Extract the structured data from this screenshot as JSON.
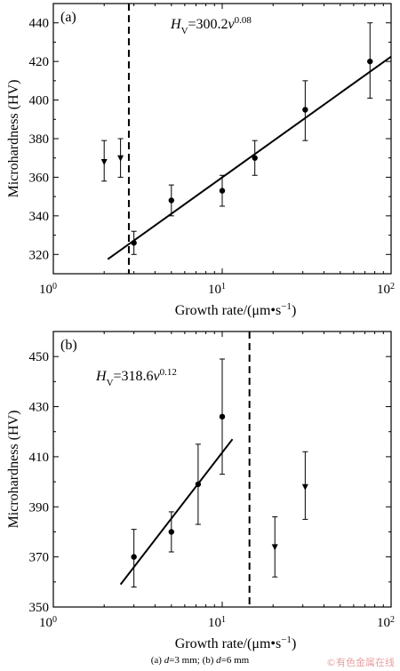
{
  "chart_data": [
    {
      "type": "scatter",
      "panel_label": "(a)",
      "equation": {
        "lhs": "H",
        "lhs_sub": "V",
        "rhs": "=300.2",
        "var": "v",
        "exp": "0.08"
      },
      "xlabel": "Growth rate/(μm•s",
      "xlabel_sup": "−1",
      "xlabel_end": ")",
      "ylabel": "Microhardness (HV)",
      "x_scale": "log",
      "xlim": [
        1,
        100
      ],
      "ylim": [
        310,
        450
      ],
      "x_ticks": [
        {
          "value": 1,
          "base": "10",
          "exp": "0"
        },
        {
          "value": 10,
          "base": "10",
          "exp": "1"
        },
        {
          "value": 100,
          "base": "10",
          "exp": "2"
        }
      ],
      "y_ticks": [
        320,
        340,
        360,
        380,
        400,
        420,
        440
      ],
      "dashed_line_x": 2.8,
      "fit_line": {
        "x": [
          2.1,
          100
        ],
        "y": [
          317.5,
          422.5
        ]
      },
      "series": [
        {
          "marker": "circle",
          "points": [
            {
              "x": 3.0,
              "y": 326,
              "err_low": 320,
              "err_high": 332
            },
            {
              "x": 5.0,
              "y": 348,
              "err_low": 340,
              "err_high": 356
            },
            {
              "x": 10.0,
              "y": 353,
              "err_low": 345,
              "err_high": 361
            },
            {
              "x": 15.6,
              "y": 370,
              "err_low": 361,
              "err_high": 379
            },
            {
              "x": 31.0,
              "y": 395,
              "err_low": 379,
              "err_high": 410
            },
            {
              "x": 75.0,
              "y": 420,
              "err_low": 401,
              "err_high": 440
            }
          ]
        },
        {
          "marker": "triangle-down",
          "points": [
            {
              "x": 2.0,
              "y": 368,
              "err_low": 358,
              "err_high": 379
            },
            {
              "x": 2.5,
              "y": 370,
              "err_low": 360,
              "err_high": 380
            }
          ]
        }
      ]
    },
    {
      "type": "scatter",
      "panel_label": "(b)",
      "equation": {
        "lhs": "H",
        "lhs_sub": "V",
        "rhs": "=318.6",
        "var": "v",
        "exp": "0.12"
      },
      "xlabel": "Growth rate/(μm•s",
      "xlabel_sup": "−1",
      "xlabel_end": ")",
      "ylabel": "Microhardness (HV)",
      "x_scale": "log",
      "xlim": [
        1,
        100
      ],
      "ylim": [
        350,
        460
      ],
      "x_ticks": [
        {
          "value": 1,
          "base": "10",
          "exp": "0"
        },
        {
          "value": 10,
          "base": "10",
          "exp": "1"
        },
        {
          "value": 100,
          "base": "10",
          "exp": "2"
        }
      ],
      "y_ticks": [
        350,
        370,
        390,
        410,
        430,
        450
      ],
      "dashed_line_x": 14.5,
      "fit_line": {
        "x": [
          2.5,
          11.5
        ],
        "y": [
          359,
          417
        ]
      },
      "series": [
        {
          "marker": "circle",
          "points": [
            {
              "x": 3.0,
              "y": 370,
              "err_low": 358,
              "err_high": 381
            },
            {
              "x": 5.0,
              "y": 380,
              "err_low": 372,
              "err_high": 388
            },
            {
              "x": 7.2,
              "y": 399,
              "err_low": 383,
              "err_high": 415
            },
            {
              "x": 10.0,
              "y": 426,
              "err_low": 403,
              "err_high": 449
            }
          ]
        },
        {
          "marker": "triangle-down",
          "points": [
            {
              "x": 20.5,
              "y": 374,
              "err_low": 362,
              "err_high": 386
            },
            {
              "x": 31.0,
              "y": 398,
              "err_low": 385,
              "err_high": 412
            }
          ]
        }
      ]
    }
  ],
  "caption": {
    "a_label": "(a) ",
    "a_var": "d",
    "a_text": "=3 mm; (b) ",
    "b_var": "d",
    "b_text": "=6 mm"
  },
  "watermark": "©有色金属在线"
}
